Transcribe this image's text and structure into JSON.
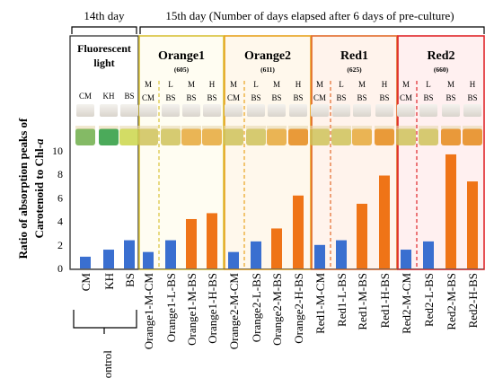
{
  "header": {
    "day14": "14th day",
    "day15": "15th day (Number of days elapsed after 6 days of pre-culture)"
  },
  "panels": [
    {
      "title": "Fluorescent",
      "title2": "light",
      "wl": "",
      "border": "#222222",
      "codes": [
        [
          "CM",
          ""
        ],
        [
          "KH",
          ""
        ],
        [
          "BS",
          ""
        ]
      ]
    },
    {
      "title": "Orange1",
      "title2": "",
      "wl": "(605)",
      "border": "#d8c23a",
      "codes": [
        [
          "M",
          "CM"
        ],
        [
          "L",
          "BS"
        ],
        [
          "M",
          "BS"
        ],
        [
          "H",
          "BS"
        ]
      ]
    },
    {
      "title": "Orange2",
      "title2": "",
      "wl": "(611)",
      "border": "#e8a31f",
      "codes": [
        [
          "M",
          "CM"
        ],
        [
          "L",
          "BS"
        ],
        [
          "M",
          "BS"
        ],
        [
          "H",
          "BS"
        ]
      ]
    },
    {
      "title": "Red1",
      "title2": "",
      "wl": "(625)",
      "border": "#e36a2a",
      "codes": [
        [
          "M",
          "CM"
        ],
        [
          "L",
          "BS"
        ],
        [
          "M",
          "BS"
        ],
        [
          "H",
          "BS"
        ]
      ]
    },
    {
      "title": "Red2",
      "title2": "",
      "wl": "(660)",
      "border": "#e0262a",
      "codes": [
        [
          "M",
          "CM"
        ],
        [
          "L",
          "BS"
        ],
        [
          "M",
          "BS"
        ],
        [
          "H",
          "BS"
        ]
      ]
    }
  ],
  "chart_data": {
    "type": "bar",
    "ylabel_line1": "Ratio of absorption peaks of",
    "ylabel_line2": "Carotenoid to Chl-",
    "ylabel_italic": "a",
    "ylim": [
      0,
      10
    ],
    "yticks": [
      0,
      2,
      4,
      6,
      8,
      10
    ],
    "group_label": "Control",
    "colors": {
      "blue": "#3a6fd0",
      "orange": "#ef7417"
    },
    "categories": [
      "CM",
      "KH",
      "BS",
      "Orange1-M-CM",
      "Orange1-L-BS",
      "Orange1-M-BS",
      "Orange1-H-BS",
      "Orange2-M-CM",
      "Orange2-L-BS",
      "Orange2-M-BS",
      "Orange2-H-BS",
      "Red1-M-CM",
      "Red1-L-BS",
      "Red1-M-BS",
      "Red1-H-BS",
      "Red2-M-CM",
      "Red2-L-BS",
      "Red2-M-BS",
      "Red2-H-BS"
    ],
    "values": [
      1.0,
      1.6,
      2.4,
      1.4,
      2.4,
      4.2,
      4.7,
      1.4,
      2.3,
      3.4,
      6.2,
      2.0,
      2.4,
      5.5,
      7.9,
      1.6,
      2.3,
      9.7,
      7.4
    ],
    "bar_colors": [
      "blue",
      "blue",
      "blue",
      "blue",
      "blue",
      "orange",
      "orange",
      "blue",
      "blue",
      "orange",
      "orange",
      "blue",
      "blue",
      "orange",
      "orange",
      "blue",
      "blue",
      "orange",
      "orange"
    ]
  }
}
